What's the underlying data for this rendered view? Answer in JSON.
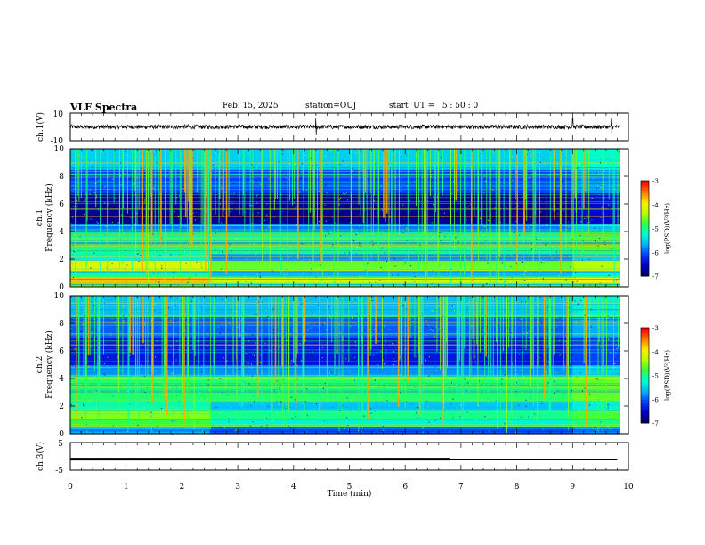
{
  "header": {
    "title": "VLF Spectra",
    "date": "Feb. 15, 2025",
    "station": "station=OUJ",
    "start": "start  UT =   5 : 50 : 0"
  },
  "colors": {
    "axis": "#000000",
    "colormap": [
      "#000064",
      "#0000c8",
      "#0040ff",
      "#00b4ff",
      "#00ffd0",
      "#30ff40",
      "#b4ff00",
      "#ffee00",
      "#ff8000",
      "#ff0000",
      "#ffffff"
    ]
  },
  "chart_data": [
    {
      "type": "line",
      "name": "ch1-waveform",
      "ylabel": "ch.1(V)",
      "ylim": [
        -10,
        10
      ],
      "yticks": [
        "10",
        "-10"
      ],
      "xlim": [
        0,
        10
      ],
      "grid": false,
      "note_values": {
        "baseline": 0,
        "typical_amplitude": 1.5,
        "spikes_at_min": [
          4.4,
          9.0,
          9.7
        ]
      }
    },
    {
      "type": "heatmap",
      "name": "ch1-spectrogram",
      "ylabel": "ch.1\nFrequency (kHz)",
      "xlim": [
        0,
        10
      ],
      "ylim": [
        0,
        10
      ],
      "yticks": [
        "0",
        "2",
        "4",
        "6",
        "8",
        "10"
      ],
      "colorbar": {
        "label": "log(PSD)(V²/Hz)",
        "range": [
          -7,
          -3
        ],
        "ticks": [
          "-3",
          "-4",
          "-5",
          "-6",
          "-7"
        ]
      },
      "bands": [
        {
          "f0": 0.0,
          "f1": 0.3,
          "level": -5.2
        },
        {
          "f0": 0.3,
          "f1": 0.7,
          "level": -4.2
        },
        {
          "f0": 0.7,
          "f1": 1.2,
          "level": -5.6
        },
        {
          "f0": 1.2,
          "f1": 1.9,
          "level": -4.6
        },
        {
          "f0": 1.9,
          "f1": 2.4,
          "level": -5.8
        },
        {
          "f0": 2.4,
          "f1": 4.0,
          "level": -5.0
        },
        {
          "f0": 4.0,
          "f1": 4.6,
          "level": -5.9
        },
        {
          "f0": 4.6,
          "f1": 6.8,
          "level": -6.8
        },
        {
          "f0": 6.8,
          "f1": 8.5,
          "level": -6.1
        },
        {
          "f0": 8.5,
          "f1": 10.0,
          "level": -5.5
        }
      ],
      "regime_change_min": [
        2.5,
        9.0
      ],
      "sferic_density": "high"
    },
    {
      "type": "heatmap",
      "name": "ch2-spectrogram",
      "ylabel": "ch.2\nFrequency (kHz)",
      "xlim": [
        0,
        10
      ],
      "ylim": [
        0,
        10
      ],
      "yticks": [
        "0",
        "2",
        "4",
        "6",
        "8",
        "10"
      ],
      "colorbar": {
        "label": "log(PSD)(V²/Hz)",
        "range": [
          -7,
          -3
        ],
        "ticks": [
          "-3",
          "-4",
          "-5",
          "-6",
          "-7"
        ]
      },
      "bands": [
        {
          "f0": 0.0,
          "f1": 0.5,
          "level": -6.2
        },
        {
          "f0": 0.5,
          "f1": 1.1,
          "level": -5.3
        },
        {
          "f0": 1.1,
          "f1": 1.8,
          "level": -5.0
        },
        {
          "f0": 1.8,
          "f1": 2.4,
          "level": -5.6
        },
        {
          "f0": 2.4,
          "f1": 4.2,
          "level": -4.9
        },
        {
          "f0": 4.2,
          "f1": 5.0,
          "level": -5.8
        },
        {
          "f0": 5.0,
          "f1": 7.0,
          "level": -6.4
        },
        {
          "f0": 7.0,
          "f1": 8.5,
          "level": -6.0
        },
        {
          "f0": 8.5,
          "f1": 10.0,
          "level": -5.6
        }
      ],
      "regime_change_min": [
        2.5,
        9.0
      ],
      "sferic_density": "high"
    },
    {
      "type": "line",
      "name": "ch3-level",
      "ylabel": "ch.3(V)",
      "ylim": [
        -5,
        5
      ],
      "yticks": [
        "5",
        "-5"
      ],
      "xlim": [
        0,
        10
      ],
      "xlabel": "Time  (min)",
      "xticks": [
        "0",
        "1",
        "2",
        "3",
        "4",
        "5",
        "6",
        "7",
        "8",
        "9",
        "10"
      ],
      "series": [
        {
          "x": [
            0,
            6.8,
            6.8,
            9.8
          ],
          "y": [
            -1,
            -1,
            -1,
            -1
          ],
          "thick_until": 6.8
        }
      ]
    }
  ]
}
